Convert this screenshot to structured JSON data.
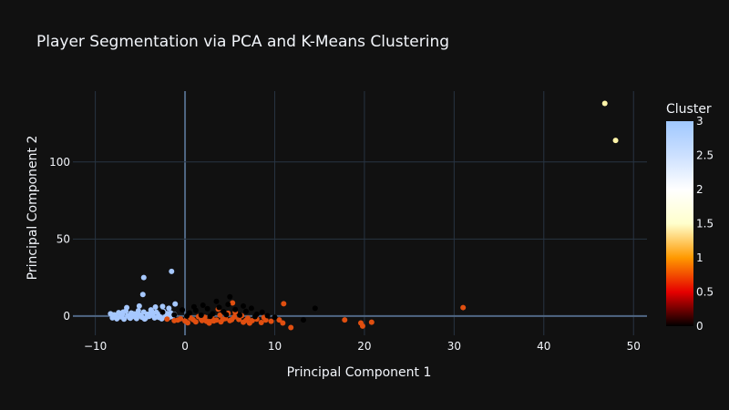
{
  "chart_data": {
    "type": "scatter",
    "title": "Player Segmentation via PCA and K-Means Clustering",
    "xlabel": "Principal Component 1",
    "ylabel": "Principal Component 2",
    "xlim": [
      -12.5,
      51.5
    ],
    "ylim": [
      -12.5,
      146
    ],
    "xticks": [
      -10,
      0,
      10,
      20,
      30,
      40,
      50
    ],
    "yticks": [
      0,
      50,
      100
    ],
    "grid": true,
    "legend": "colorbar-right",
    "colorbar": {
      "title": "Cluster",
      "range": [
        0,
        3
      ],
      "ticks": [
        "0",
        "0.5",
        "1",
        "1.5",
        "2",
        "2.5",
        "3"
      ],
      "colorscale": [
        [
          0.0,
          "#000000"
        ],
        [
          0.1667,
          "#e60000"
        ],
        [
          0.3333,
          "#ff9900"
        ],
        [
          0.5,
          "#ffffcc"
        ],
        [
          0.6667,
          "#ffffff"
        ],
        [
          0.8333,
          "#cce0ff"
        ],
        [
          1.0,
          "#a0c8ff"
        ]
      ]
    },
    "series": [
      {
        "cluster": 3,
        "color": "#a6c8ff",
        "points": [
          [
            -8.3,
            1.5
          ],
          [
            -8.1,
            -1.2
          ],
          [
            -7.9,
            0.8
          ],
          [
            -7.6,
            -1.8
          ],
          [
            -7.4,
            2.2
          ],
          [
            -7.2,
            -0.5
          ],
          [
            -7.0,
            1.0
          ],
          [
            -6.8,
            -2.0
          ],
          [
            -6.6,
            3.2
          ],
          [
            -6.4,
            0.2
          ],
          [
            -6.2,
            -1.0
          ],
          [
            -6.0,
            2.0
          ],
          [
            -5.8,
            -0.3
          ],
          [
            -5.6,
            1.4
          ],
          [
            -5.4,
            -1.6
          ],
          [
            -5.2,
            3.5
          ],
          [
            -5.0,
            0.6
          ],
          [
            -4.8,
            -0.8
          ],
          [
            -4.6,
            2.6
          ],
          [
            -4.4,
            -1.4
          ],
          [
            -4.2,
            1.2
          ],
          [
            -4.0,
            -0.2
          ],
          [
            -3.8,
            4.0
          ],
          [
            -3.6,
            0.4
          ],
          [
            -3.4,
            -1.2
          ],
          [
            -3.2,
            2.4
          ],
          [
            -3.0,
            -0.6
          ],
          [
            -2.8,
            1.0
          ],
          [
            -2.6,
            -1.8
          ],
          [
            -2.4,
            3.0
          ],
          [
            -2.2,
            0.0
          ],
          [
            -2.0,
            1.6
          ],
          [
            -1.8,
            -1.0
          ],
          [
            -1.6,
            2.0
          ],
          [
            -1.4,
            -0.4
          ],
          [
            -1.2,
            1.0
          ],
          [
            -7.7,
            -0.6
          ],
          [
            -6.9,
            2.6
          ],
          [
            -6.1,
            -1.4
          ],
          [
            -5.3,
            0.9
          ],
          [
            -4.5,
            -1.9
          ],
          [
            -3.7,
            2.9
          ],
          [
            -2.9,
            -0.9
          ],
          [
            -2.1,
            0.7
          ],
          [
            -6.5,
            5.5
          ],
          [
            -5.1,
            6.5
          ],
          [
            -3.3,
            5.8
          ],
          [
            -2.5,
            6.2
          ],
          [
            -1.8,
            5.0
          ],
          [
            -1.1,
            7.8
          ],
          [
            -4.7,
            14.0
          ],
          [
            -4.6,
            25.0
          ],
          [
            -1.5,
            29.0
          ],
          [
            -5.9,
            1.7
          ],
          [
            -4.9,
            -0.1
          ],
          [
            -3.9,
            1.3
          ]
        ]
      },
      {
        "cluster": 1,
        "color": "#e04f10",
        "points": [
          [
            -2.0,
            -2.0
          ],
          [
            -1.2,
            -3.0
          ],
          [
            -0.5,
            -1.8
          ],
          [
            0.0,
            -3.2
          ],
          [
            0.6,
            -1.2
          ],
          [
            1.2,
            -3.8
          ],
          [
            1.8,
            -2.0
          ],
          [
            2.4,
            -3.4
          ],
          [
            3.0,
            -1.0
          ],
          [
            3.5,
            -2.6
          ],
          [
            4.0,
            -3.8
          ],
          [
            4.5,
            -1.6
          ],
          [
            5.0,
            -3.0
          ],
          [
            5.5,
            -0.6
          ],
          [
            6.0,
            -2.2
          ],
          [
            6.5,
            -4.0
          ],
          [
            7.0,
            -1.4
          ],
          [
            7.5,
            -3.0
          ],
          [
            8.0,
            -2.0
          ],
          [
            8.5,
            -4.2
          ],
          [
            9.0,
            -2.6
          ],
          [
            9.6,
            -3.4
          ],
          [
            0.3,
            -4.4
          ],
          [
            1.5,
            -0.4
          ],
          [
            2.7,
            -4.6
          ],
          [
            3.9,
            0.6
          ],
          [
            4.8,
            1.8
          ],
          [
            5.6,
            2.4
          ],
          [
            6.3,
            0.2
          ],
          [
            7.2,
            -4.6
          ],
          [
            2.2,
            -0.8
          ],
          [
            3.2,
            -3.2
          ],
          [
            4.2,
            -2.2
          ],
          [
            6.8,
            -2.8
          ],
          [
            8.8,
            -1.0
          ],
          [
            -0.8,
            -2.6
          ],
          [
            0.9,
            -2.4
          ],
          [
            1.9,
            -3.0
          ],
          [
            2.9,
            -1.8
          ],
          [
            5.2,
            -2.4
          ],
          [
            3.7,
            4.5
          ],
          [
            5.3,
            8.5
          ],
          [
            11.0,
            8.0
          ],
          [
            10.5,
            -2.5
          ],
          [
            10.9,
            -4.5
          ],
          [
            11.8,
            -7.5
          ],
          [
            17.8,
            -2.5
          ],
          [
            19.6,
            -4.5
          ],
          [
            19.8,
            -6.5
          ],
          [
            20.8,
            -4.0
          ],
          [
            31.0,
            5.5
          ]
        ]
      },
      {
        "cluster": 0,
        "color": "#000000",
        "points": [
          [
            -2.5,
            2.5
          ],
          [
            -1.2,
            0.8
          ],
          [
            -0.3,
            4.0
          ],
          [
            0.5,
            2.0
          ],
          [
            1.2,
            3.6
          ],
          [
            1.8,
            0.5
          ],
          [
            2.5,
            4.8
          ],
          [
            3.1,
            1.5
          ],
          [
            3.8,
            5.6
          ],
          [
            4.3,
            2.8
          ],
          [
            5.0,
            12.5
          ],
          [
            5.6,
            4.2
          ],
          [
            6.1,
            0.6
          ],
          [
            6.8,
            3.0
          ],
          [
            7.4,
            5.0
          ],
          [
            8.0,
            1.2
          ],
          [
            8.6,
            2.5
          ],
          [
            9.2,
            0.2
          ],
          [
            10.0,
            -0.8
          ],
          [
            13.2,
            -2.5
          ],
          [
            14.5,
            5.0
          ],
          [
            2.0,
            7.0
          ],
          [
            3.5,
            9.5
          ],
          [
            4.8,
            7.5
          ],
          [
            1.0,
            6.0
          ],
          [
            6.5,
            6.5
          ],
          [
            0.2,
            0.0
          ],
          [
            2.8,
            -0.2
          ],
          [
            4.6,
            0.9
          ],
          [
            7.8,
            -0.4
          ]
        ]
      },
      {
        "cluster": 2,
        "color": "#fff4a8",
        "points": [
          [
            46.8,
            138.0
          ],
          [
            48.0,
            114.0
          ]
        ]
      }
    ]
  }
}
